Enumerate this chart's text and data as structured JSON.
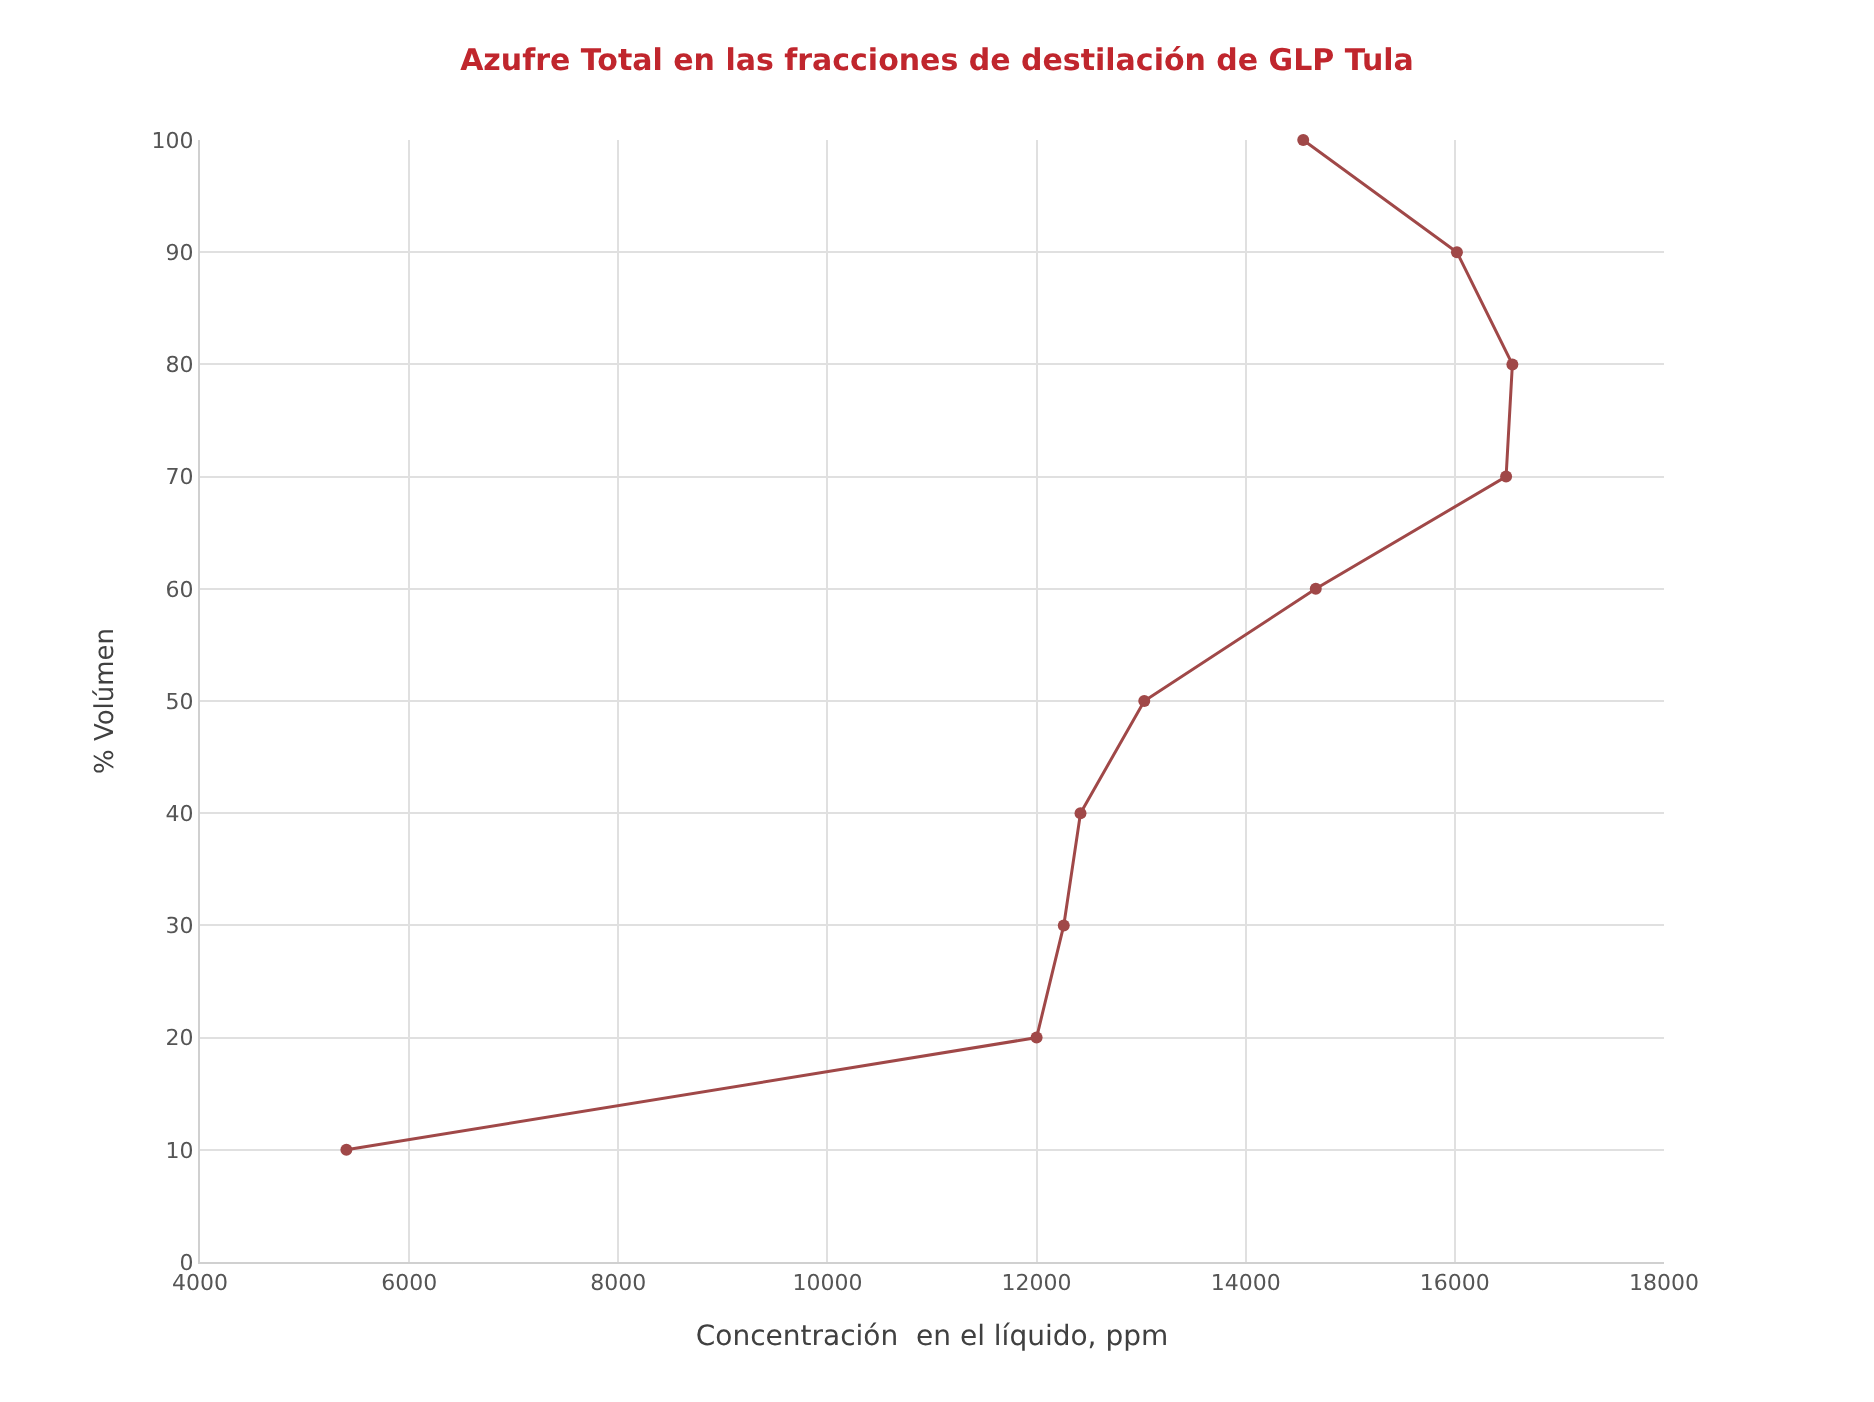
{
  "chart_data": {
    "type": "line",
    "title": "Azufre Total en las fracciones de destilación de GLP Tula",
    "xlabel": "Concentración  en el líquido, ppm",
    "ylabel": "% Volúmen",
    "x": [
      5400,
      12000,
      12260,
      12420,
      13030,
      14670,
      16490,
      16550,
      16020,
      14550
    ],
    "series": [
      {
        "color": "#a04848",
        "values": [
          10,
          20,
          30,
          40,
          50,
          60,
          70,
          80,
          90,
          100
        ]
      }
    ],
    "xlim": [
      4000,
      18000
    ],
    "xticks": [
      4000,
      6000,
      8000,
      10000,
      12000,
      14000,
      16000,
      18000
    ],
    "ylim": [
      0,
      100
    ],
    "yticks": [
      0,
      10,
      20,
      30,
      40,
      50,
      60,
      70,
      80,
      90,
      100
    ],
    "grid": true,
    "marker": "circle",
    "line_style": "solid"
  }
}
